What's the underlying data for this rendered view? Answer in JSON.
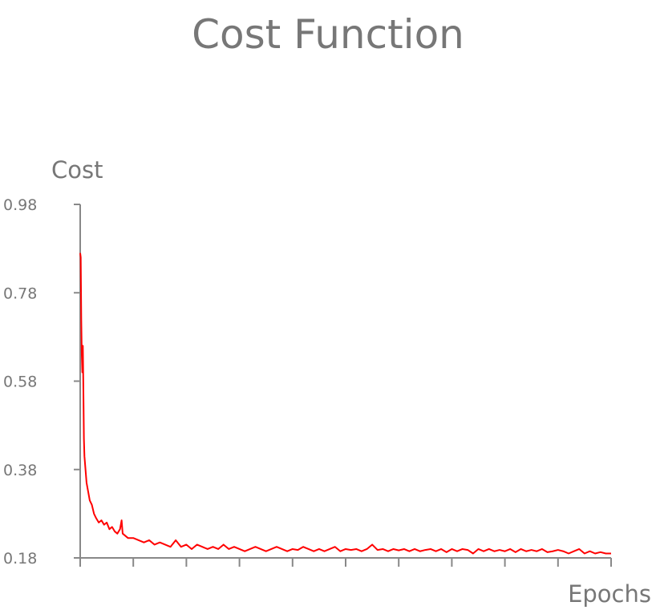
{
  "chart_data": {
    "type": "line",
    "title": "Cost Function",
    "xlabel": "Epochs",
    "ylabel": "Cost",
    "ylim": [
      0.18,
      0.98
    ],
    "yticks": [
      "0.98",
      "0.78",
      "0.58",
      "0.38",
      "0.18"
    ],
    "x_tick_count": 11,
    "x_tick_labels_shown": false,
    "grid": false,
    "legend": "none",
    "line_color": "#ff0000",
    "axis_color": "#888888",
    "text_color": "#777777",
    "series": [
      {
        "x": [
          0,
          1,
          2,
          3,
          4,
          5,
          6,
          7,
          8,
          10,
          12,
          15,
          18,
          22,
          26,
          30,
          35,
          40,
          45,
          50,
          55,
          60,
          65,
          70,
          75,
          78,
          80,
          85,
          90,
          100,
          110,
          120,
          130,
          140,
          150,
          160,
          170,
          180,
          190,
          200,
          210,
          220,
          230,
          240,
          250,
          260,
          270,
          280,
          290,
          300,
          310,
          320,
          330,
          340,
          350,
          360,
          370,
          380,
          390,
          400,
          410,
          420,
          430,
          440,
          450,
          460,
          470,
          480,
          490,
          500,
          510,
          520,
          530,
          540,
          550,
          560,
          570,
          580,
          590,
          600,
          610,
          620,
          630,
          640,
          650,
          660,
          670,
          680,
          690,
          700,
          710,
          720,
          730,
          740,
          750,
          760,
          770,
          780,
          790,
          800,
          810,
          820,
          830,
          840,
          850,
          860,
          870,
          880,
          890,
          900,
          910,
          920,
          930,
          940,
          950,
          960,
          970,
          980,
          990,
          1000
        ],
        "values": [
          0.87,
          0.86,
          0.72,
          0.64,
          0.6,
          0.66,
          0.56,
          0.45,
          0.41,
          0.38,
          0.35,
          0.33,
          0.31,
          0.3,
          0.28,
          0.27,
          0.26,
          0.265,
          0.255,
          0.26,
          0.245,
          0.25,
          0.24,
          0.235,
          0.245,
          0.265,
          0.235,
          0.23,
          0.225,
          0.225,
          0.22,
          0.215,
          0.22,
          0.21,
          0.215,
          0.21,
          0.205,
          0.22,
          0.205,
          0.21,
          0.2,
          0.21,
          0.205,
          0.2,
          0.205,
          0.2,
          0.21,
          0.2,
          0.205,
          0.2,
          0.195,
          0.2,
          0.205,
          0.2,
          0.195,
          0.2,
          0.205,
          0.2,
          0.195,
          0.2,
          0.198,
          0.205,
          0.2,
          0.195,
          0.2,
          0.195,
          0.2,
          0.205,
          0.195,
          0.2,
          0.198,
          0.2,
          0.195,
          0.2,
          0.21,
          0.198,
          0.2,
          0.195,
          0.2,
          0.197,
          0.2,
          0.195,
          0.2,
          0.195,
          0.198,
          0.2,
          0.195,
          0.2,
          0.193,
          0.2,
          0.195,
          0.2,
          0.198,
          0.19,
          0.2,
          0.195,
          0.2,
          0.195,
          0.198,
          0.195,
          0.2,
          0.193,
          0.2,
          0.195,
          0.198,
          0.195,
          0.2,
          0.193,
          0.195,
          0.198,
          0.195,
          0.19,
          0.195,
          0.2,
          0.19,
          0.195,
          0.19,
          0.193,
          0.19,
          0.19
        ]
      }
    ]
  }
}
